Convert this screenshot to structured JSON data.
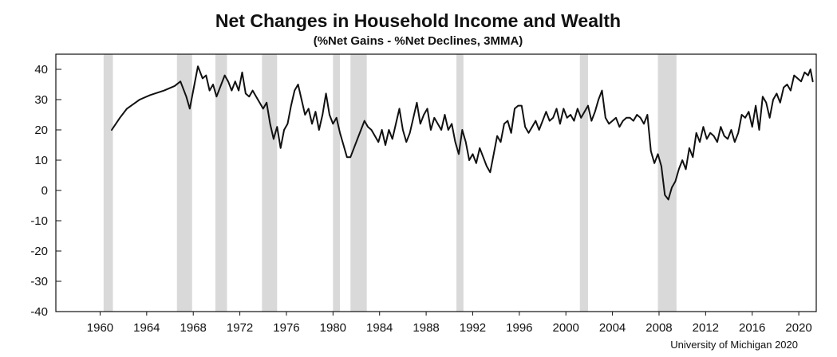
{
  "chart_data": {
    "type": "line",
    "title": "Net Changes in Household Income and Wealth",
    "subtitle": "(%Net Gains - %Net Declines, 3MMA)",
    "source": "University of Michigan 2020",
    "xlabel": "",
    "ylabel": "",
    "x_ticks": [
      "1960",
      "1964",
      "1968",
      "1972",
      "1976",
      "1980",
      "1984",
      "1988",
      "1992",
      "1996",
      "2000",
      "2004",
      "2008",
      "2012",
      "2016",
      "2020"
    ],
    "y_ticks": [
      "40",
      "30",
      "20",
      "10",
      "0",
      "-10",
      "-20",
      "-30",
      "-40"
    ],
    "xlim": [
      1956.2,
      2021.5
    ],
    "ylim": [
      -40,
      45
    ],
    "grid": false,
    "legend": "none",
    "colors": {
      "line": "#111111",
      "recession_band": "#d9d9d9",
      "frame": "#111111"
    },
    "recessions": [
      {
        "start": 1960.3,
        "end": 1961.1
      },
      {
        "start": 1966.6,
        "end": 1967.9
      },
      {
        "start": 1969.9,
        "end": 1970.9
      },
      {
        "start": 1973.9,
        "end": 1975.2
      },
      {
        "start": 1980.0,
        "end": 1980.6
      },
      {
        "start": 1981.5,
        "end": 1982.9
      },
      {
        "start": 1990.6,
        "end": 1991.2
      },
      {
        "start": 2001.2,
        "end": 2001.9
      },
      {
        "start": 2007.9,
        "end": 2009.5
      }
    ],
    "series": [
      {
        "values": [
          [
            1961.0,
            20
          ],
          [
            1961.7,
            24
          ],
          [
            1962.3,
            27
          ],
          [
            1963.4,
            30
          ],
          [
            1964.3,
            31.5
          ],
          [
            1965.5,
            33
          ],
          [
            1966.4,
            34.5
          ],
          [
            1966.9,
            36
          ],
          [
            1967.4,
            31
          ],
          [
            1967.7,
            27
          ],
          [
            1968.1,
            35
          ],
          [
            1968.4,
            41
          ],
          [
            1968.8,
            37
          ],
          [
            1969.1,
            38
          ],
          [
            1969.4,
            33
          ],
          [
            1969.7,
            35
          ],
          [
            1970.0,
            31
          ],
          [
            1970.3,
            34
          ],
          [
            1970.7,
            38
          ],
          [
            1971.0,
            36
          ],
          [
            1971.3,
            33
          ],
          [
            1971.6,
            36
          ],
          [
            1971.9,
            33
          ],
          [
            1972.2,
            39
          ],
          [
            1972.5,
            32
          ],
          [
            1972.8,
            31
          ],
          [
            1973.1,
            33
          ],
          [
            1973.4,
            31
          ],
          [
            1973.7,
            29
          ],
          [
            1974.0,
            27
          ],
          [
            1974.3,
            29
          ],
          [
            1974.6,
            22
          ],
          [
            1974.9,
            17
          ],
          [
            1975.2,
            21
          ],
          [
            1975.5,
            14
          ],
          [
            1975.8,
            20
          ],
          [
            1976.1,
            22
          ],
          [
            1976.4,
            28
          ],
          [
            1976.7,
            33
          ],
          [
            1977.0,
            35
          ],
          [
            1977.3,
            30
          ],
          [
            1977.6,
            25
          ],
          [
            1977.9,
            27
          ],
          [
            1978.2,
            22
          ],
          [
            1978.5,
            26
          ],
          [
            1978.8,
            20
          ],
          [
            1979.1,
            25
          ],
          [
            1979.4,
            32
          ],
          [
            1979.7,
            25
          ],
          [
            1980.0,
            22
          ],
          [
            1980.3,
            24
          ],
          [
            1980.6,
            19
          ],
          [
            1980.9,
            15
          ],
          [
            1981.2,
            11
          ],
          [
            1981.5,
            11
          ],
          [
            1981.8,
            14
          ],
          [
            1982.1,
            17
          ],
          [
            1982.4,
            20
          ],
          [
            1982.7,
            23
          ],
          [
            1983.0,
            21
          ],
          [
            1983.3,
            20
          ],
          [
            1983.6,
            18
          ],
          [
            1983.9,
            16
          ],
          [
            1984.2,
            20
          ],
          [
            1984.5,
            15
          ],
          [
            1984.8,
            20
          ],
          [
            1985.1,
            17
          ],
          [
            1985.4,
            22
          ],
          [
            1985.7,
            27
          ],
          [
            1986.0,
            20
          ],
          [
            1986.3,
            16
          ],
          [
            1986.6,
            19
          ],
          [
            1986.9,
            24
          ],
          [
            1987.2,
            29
          ],
          [
            1987.5,
            22
          ],
          [
            1987.8,
            25
          ],
          [
            1988.1,
            27
          ],
          [
            1988.4,
            20
          ],
          [
            1988.7,
            24
          ],
          [
            1989.0,
            22
          ],
          [
            1989.3,
            20
          ],
          [
            1989.6,
            25
          ],
          [
            1989.9,
            20
          ],
          [
            1990.2,
            22
          ],
          [
            1990.5,
            16
          ],
          [
            1990.8,
            12
          ],
          [
            1991.1,
            20
          ],
          [
            1991.4,
            16
          ],
          [
            1991.7,
            10
          ],
          [
            1992.0,
            12
          ],
          [
            1992.3,
            9
          ],
          [
            1992.6,
            14
          ],
          [
            1992.9,
            11
          ],
          [
            1993.2,
            8
          ],
          [
            1993.5,
            6
          ],
          [
            1993.8,
            12
          ],
          [
            1994.1,
            18
          ],
          [
            1994.4,
            16
          ],
          [
            1994.7,
            22
          ],
          [
            1995.0,
            23
          ],
          [
            1995.3,
            19
          ],
          [
            1995.6,
            27
          ],
          [
            1995.9,
            28
          ],
          [
            1996.2,
            28
          ],
          [
            1996.5,
            21
          ],
          [
            1996.8,
            19
          ],
          [
            1997.1,
            21
          ],
          [
            1997.4,
            23
          ],
          [
            1997.7,
            20
          ],
          [
            1998.0,
            23
          ],
          [
            1998.3,
            26
          ],
          [
            1998.6,
            23
          ],
          [
            1998.9,
            24
          ],
          [
            1999.2,
            27
          ],
          [
            1999.5,
            22
          ],
          [
            1999.8,
            27
          ],
          [
            2000.1,
            24
          ],
          [
            2000.4,
            25
          ],
          [
            2000.7,
            23
          ],
          [
            2001.0,
            27
          ],
          [
            2001.3,
            24
          ],
          [
            2001.6,
            26
          ],
          [
            2001.9,
            28
          ],
          [
            2002.2,
            23
          ],
          [
            2002.5,
            26
          ],
          [
            2002.8,
            30
          ],
          [
            2003.1,
            33
          ],
          [
            2003.4,
            24
          ],
          [
            2003.7,
            22
          ],
          [
            2004.0,
            23
          ],
          [
            2004.3,
            24
          ],
          [
            2004.6,
            21
          ],
          [
            2004.9,
            23
          ],
          [
            2005.2,
            24
          ],
          [
            2005.5,
            24
          ],
          [
            2005.8,
            23
          ],
          [
            2006.1,
            25
          ],
          [
            2006.4,
            24
          ],
          [
            2006.7,
            22
          ],
          [
            2007.0,
            25
          ],
          [
            2007.3,
            13
          ],
          [
            2007.6,
            9
          ],
          [
            2007.9,
            12
          ],
          [
            2008.2,
            8
          ],
          [
            2008.5,
            -1.5
          ],
          [
            2008.8,
            -3
          ],
          [
            2009.1,
            1
          ],
          [
            2009.4,
            3
          ],
          [
            2009.7,
            7
          ],
          [
            2010.0,
            10
          ],
          [
            2010.3,
            7
          ],
          [
            2010.6,
            14
          ],
          [
            2010.9,
            11
          ],
          [
            2011.2,
            19
          ],
          [
            2011.5,
            16
          ],
          [
            2011.8,
            21
          ],
          [
            2012.1,
            17
          ],
          [
            2012.4,
            19
          ],
          [
            2012.7,
            18
          ],
          [
            2013.0,
            16
          ],
          [
            2013.3,
            21
          ],
          [
            2013.6,
            18
          ],
          [
            2013.9,
            17
          ],
          [
            2014.2,
            20
          ],
          [
            2014.5,
            16
          ],
          [
            2014.8,
            19
          ],
          [
            2015.1,
            25
          ],
          [
            2015.4,
            24
          ],
          [
            2015.7,
            26
          ],
          [
            2016.0,
            21
          ],
          [
            2016.3,
            28
          ],
          [
            2016.6,
            20
          ],
          [
            2016.9,
            31
          ],
          [
            2017.2,
            29
          ],
          [
            2017.5,
            24
          ],
          [
            2017.8,
            30
          ],
          [
            2018.1,
            32
          ],
          [
            2018.4,
            29
          ],
          [
            2018.7,
            34
          ],
          [
            2019.0,
            35
          ],
          [
            2019.3,
            33
          ],
          [
            2019.6,
            38
          ],
          [
            2019.9,
            37
          ],
          [
            2020.2,
            36
          ],
          [
            2020.5,
            39
          ],
          [
            2020.8,
            38
          ],
          [
            2021.0,
            40
          ],
          [
            2021.2,
            36
          ]
        ]
      }
    ]
  }
}
